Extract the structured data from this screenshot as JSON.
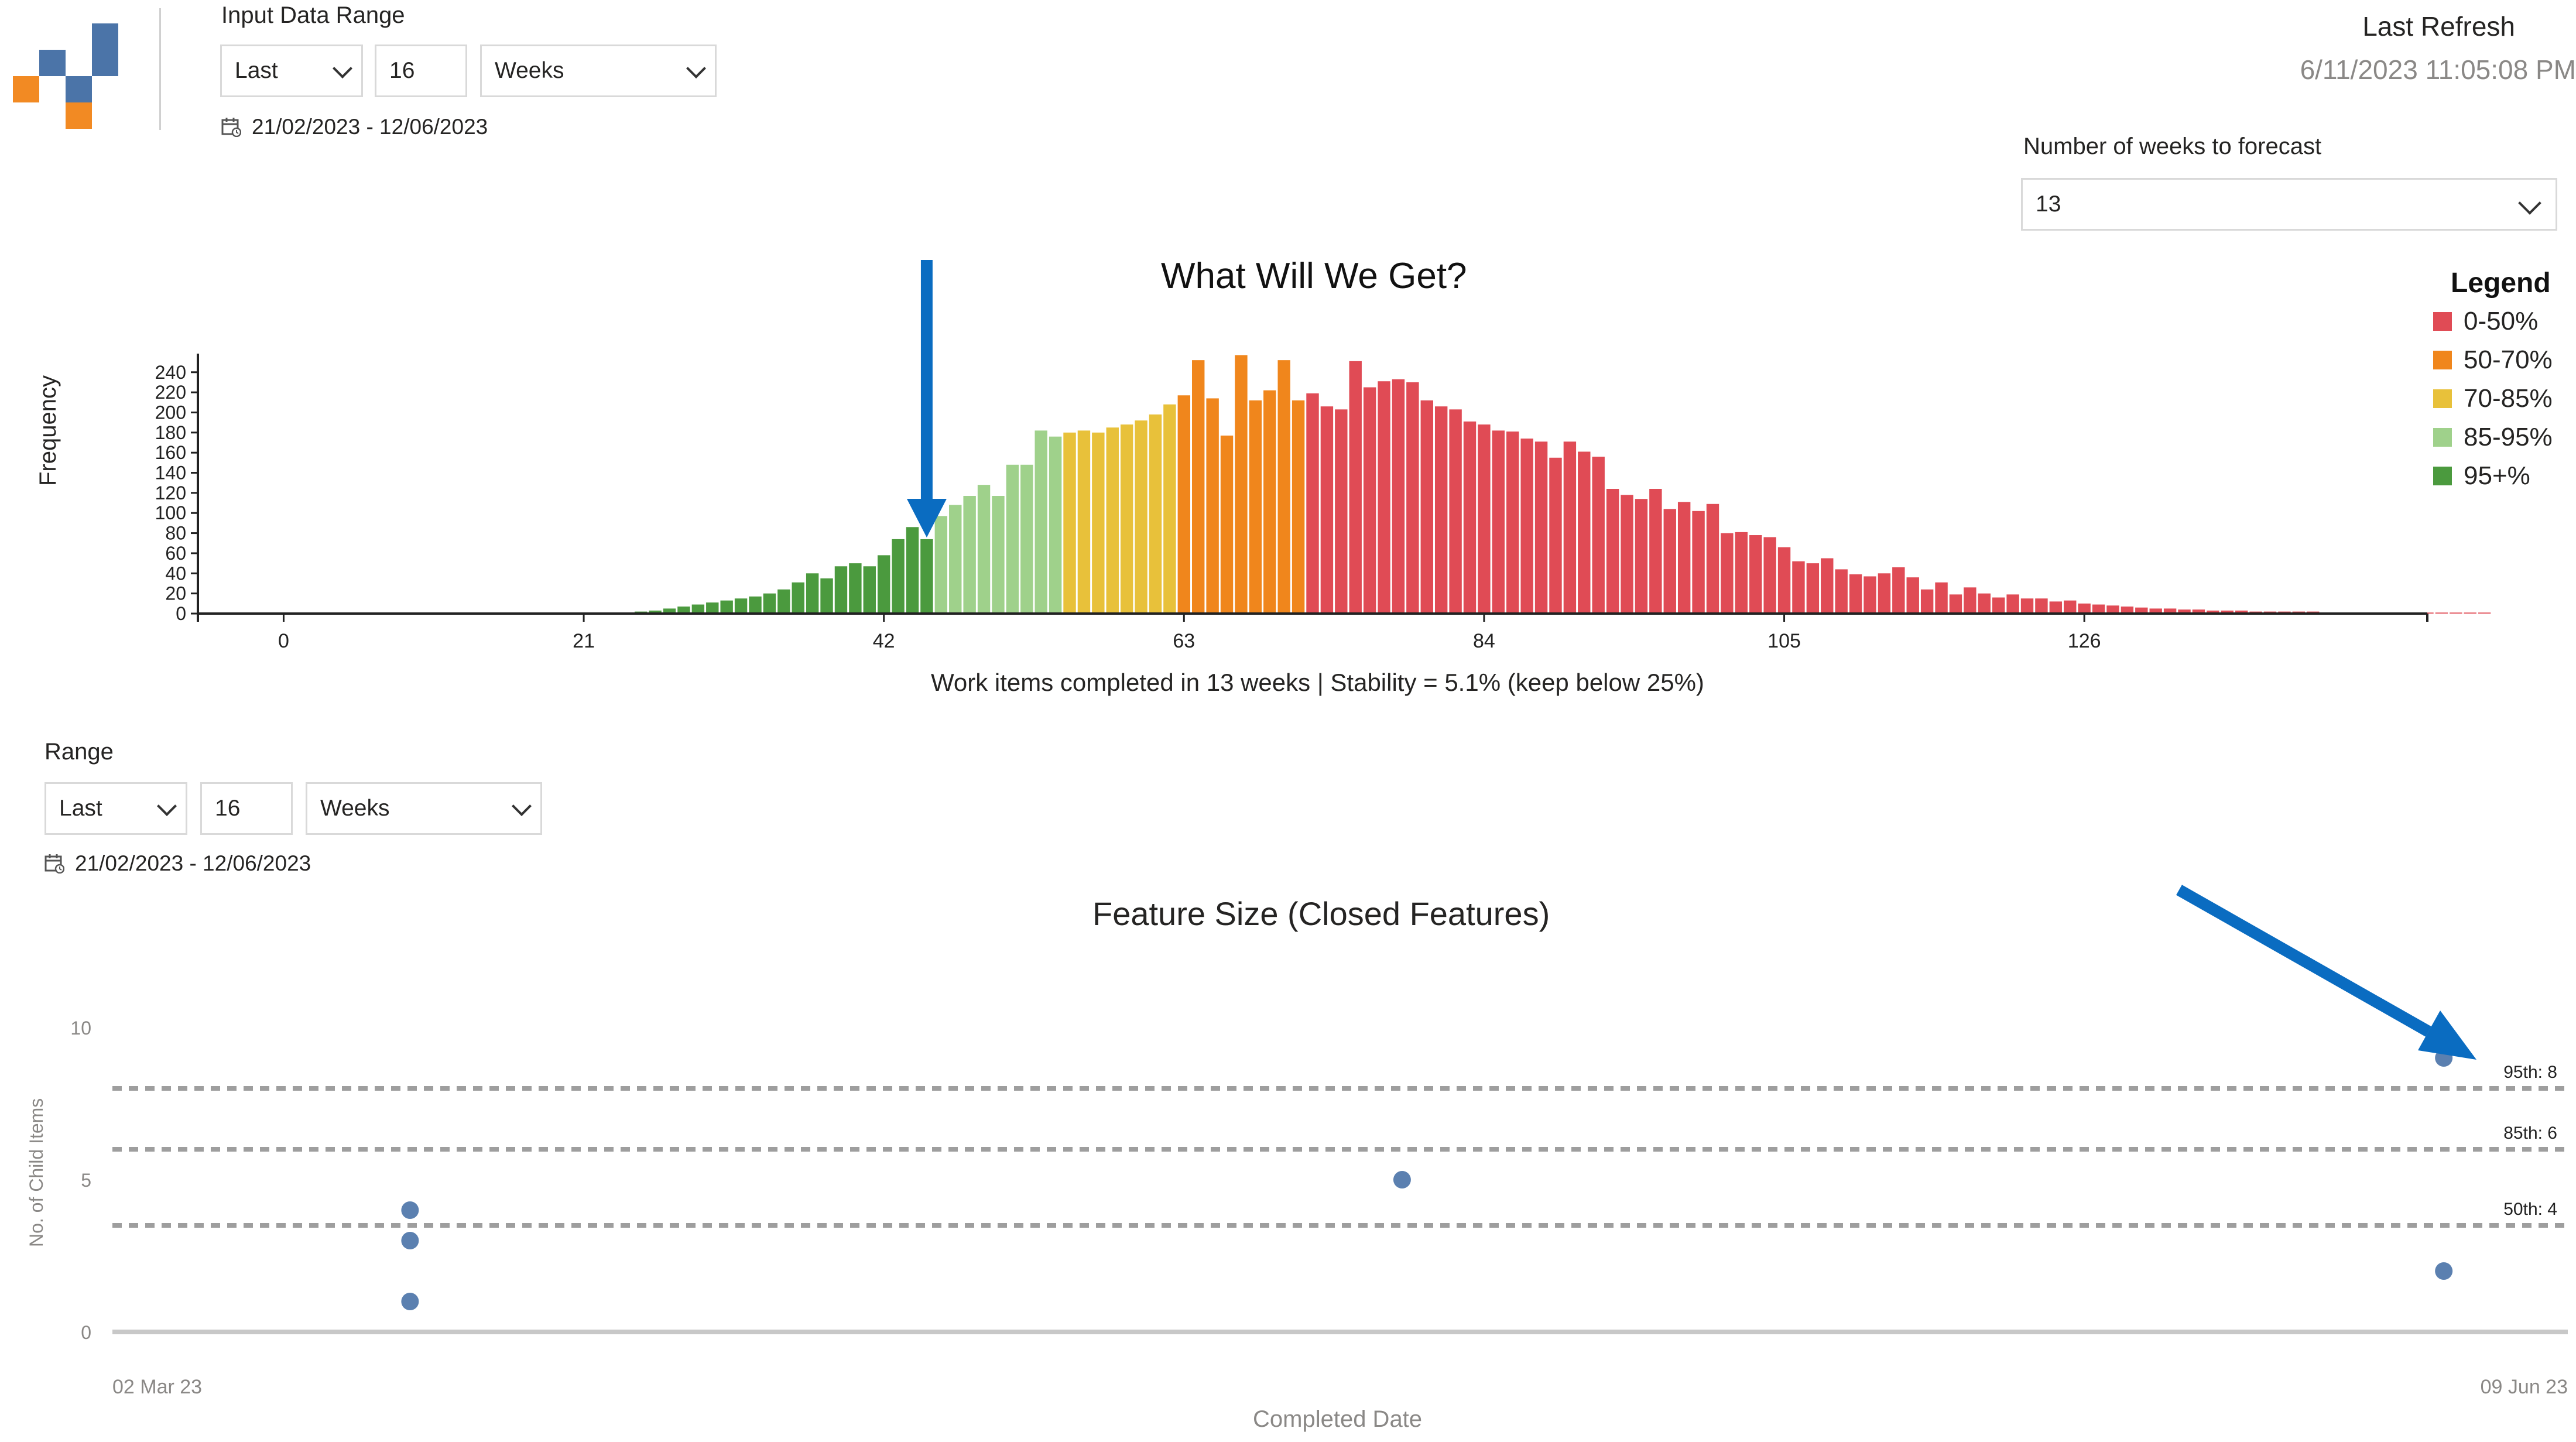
{
  "header": {
    "input_range_label": "Input Data Range",
    "period_select": "Last",
    "period_count": "16",
    "period_unit": "Weeks",
    "date_range": "21/02/2023 - 12/06/2023",
    "last_refresh_label": "Last Refresh",
    "last_refresh_value": "6/11/2023 11:05:08 PM",
    "forecast_weeks_label": "Number of weeks to forecast",
    "forecast_weeks_value": "13"
  },
  "range": {
    "label": "Range",
    "period_select": "Last",
    "period_count": "16",
    "period_unit": "Weeks",
    "date_range": "21/02/2023 - 12/06/2023"
  },
  "legend": {
    "title": "Legend",
    "items": [
      {
        "label": "0-50%",
        "color": "#e04b55"
      },
      {
        "label": "50-70%",
        "color": "#f0861c"
      },
      {
        "label": "70-85%",
        "color": "#e8c13a"
      },
      {
        "label": "85-95%",
        "color": "#9fd18b"
      },
      {
        "label": "95+%",
        "color": "#4b9a3e"
      }
    ]
  },
  "colors": {
    "arrow": "#0a6cc1",
    "scatter_point": "#5b80b0",
    "percentile_line": "#9e9e9e"
  },
  "chart_data": [
    {
      "type": "bar",
      "title": "What Will We Get?",
      "xlabel": "Work items completed in 13 weeks | Stability = 5.1% (keep below 25%)",
      "ylabel": "Frequency",
      "xlim": [
        -6,
        150
      ],
      "ylim": [
        0,
        255
      ],
      "x_ticks": [
        0,
        21,
        42,
        63,
        84,
        105,
        126
      ],
      "y_ticks": [
        0,
        20,
        40,
        60,
        80,
        100,
        120,
        140,
        160,
        180,
        200,
        220,
        240
      ],
      "x_start": 25,
      "values": [
        2,
        3,
        5,
        7,
        9,
        11,
        13,
        15,
        17,
        20,
        24,
        31,
        40,
        35,
        47,
        50,
        47,
        58,
        74,
        86,
        74,
        97,
        108,
        117,
        128,
        117,
        148,
        148,
        182,
        176,
        180,
        182,
        180,
        185,
        188,
        192,
        198,
        208,
        217,
        252,
        214,
        177,
        257,
        212,
        222,
        252,
        212,
        219,
        206,
        203,
        251,
        225,
        231,
        233,
        230,
        212,
        206,
        203,
        191,
        188,
        182,
        181,
        174,
        171,
        155,
        171,
        161,
        156,
        124,
        118,
        114,
        124,
        104,
        111,
        102,
        109,
        80,
        81,
        78,
        76,
        66,
        52,
        50,
        55,
        44,
        39,
        37,
        40,
        46,
        36,
        24,
        31,
        19,
        26,
        20,
        16,
        19,
        15,
        15,
        12,
        13,
        10,
        9,
        8,
        7,
        6,
        5,
        5,
        4,
        4,
        3,
        3,
        3,
        2,
        2,
        2,
        2,
        2,
        1,
        1,
        1,
        1,
        1,
        1,
        1,
        1,
        1,
        1,
        1,
        1
      ],
      "bands": [
        {
          "label": "95+%",
          "from": 25,
          "to": 45
        },
        {
          "label": "85-95%",
          "from": 46,
          "to": 54
        },
        {
          "label": "70-85%",
          "from": 55,
          "to": 62
        },
        {
          "label": "50-70%",
          "from": 63,
          "to": 71
        },
        {
          "label": "0-50%",
          "from": 72,
          "to": 154
        }
      ],
      "marker": {
        "x": 45
      }
    },
    {
      "type": "scatter",
      "title": "Feature Size (Closed Features)",
      "xlabel": "Completed Date",
      "ylabel": "No. of Child Items",
      "x_ticks": [
        "02 Mar 23",
        "09 Jun 23"
      ],
      "x_domain": [
        "2023-03-02",
        "2023-06-09"
      ],
      "ylim": [
        0,
        10.5
      ],
      "y_ticks": [
        0,
        5,
        10
      ],
      "points": [
        {
          "x": "2023-03-14",
          "y": 1
        },
        {
          "x": "2023-03-14",
          "y": 3
        },
        {
          "x": "2023-03-14",
          "y": 4
        },
        {
          "x": "2023-04-23",
          "y": 5
        },
        {
          "x": "2023-06-04",
          "y": 2
        },
        {
          "x": "2023-06-04",
          "y": 9
        }
      ],
      "percentiles": [
        {
          "label": "95th: 8",
          "y": 8
        },
        {
          "label": "85th: 6",
          "y": 6
        },
        {
          "label": "50th: 4",
          "y": 3.5
        }
      ]
    }
  ]
}
